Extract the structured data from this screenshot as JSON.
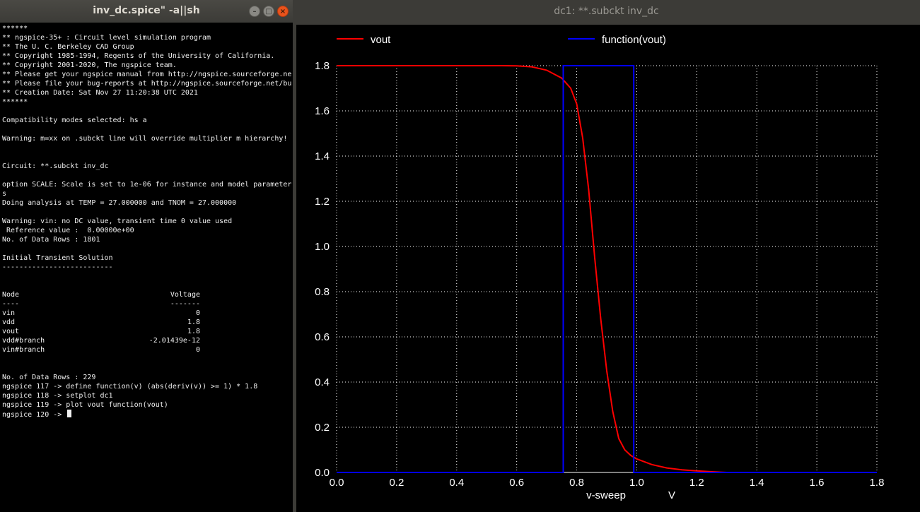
{
  "terminal": {
    "title": "inv_dc.spice\" -a||sh",
    "buttons": {
      "minimize": "–",
      "maximize": "□",
      "close": "×"
    },
    "lines": [
      "******",
      "** ngspice-35+ : Circuit level simulation program",
      "** The U. C. Berkeley CAD Group",
      "** Copyright 1985-1994, Regents of the University of California.",
      "** Copyright 2001-2020, The ngspice team.",
      "** Please get your ngspice manual from http://ngspice.sourceforge.ne",
      "** Please file your bug-reports at http://ngspice.sourceforge.net/bu",
      "** Creation Date: Sat Nov 27 11:20:38 UTC 2021",
      "******",
      "",
      "Compatibility modes selected: hs a",
      "",
      "Warning: m=xx on .subckt line will override multiplier m hierarchy!",
      "",
      "",
      "Circuit: **.subckt inv_dc",
      "",
      "option SCALE: Scale is set to 1e-06 for instance and model parameter",
      "s",
      "Doing analysis at TEMP = 27.000000 and TNOM = 27.000000",
      "",
      "Warning: vin: no DC value, transient time 0 value used",
      " Reference value :  0.00000e+00",
      "No. of Data Rows : 1801",
      "",
      "Initial Transient Solution",
      "--------------------------",
      "",
      "",
      "Node",
      "----",
      "vin",
      "vdd",
      "vout",
      "vdd#branch",
      "vin#branch",
      "",
      "",
      "No. of Data Rows : 229",
      "ngspice 117 -> define function(v) (abs(deriv(v)) >= 1) * 1.8",
      "ngspice 118 -> setplot dc1",
      "ngspice 119 -> plot vout function(vout)",
      "ngspice 120 -> "
    ],
    "right_column": [
      "",
      "",
      "",
      "",
      "",
      "",
      "",
      "",
      "",
      "",
      "",
      "",
      "",
      "",
      "",
      "",
      "",
      "",
      "",
      "",
      "",
      "",
      "",
      "",
      "",
      "",
      "",
      "",
      "",
      "Voltage",
      "-------",
      "0",
      "1.8",
      "1.8",
      "-2.01439e-12",
      "0",
      "",
      "",
      "",
      "",
      "",
      "",
      ""
    ]
  },
  "plot": {
    "window_title": "dc1: **.subckt inv_dc",
    "colors": {
      "background": "#000000",
      "grid": "#ffffff",
      "vout": "#ff0000",
      "function": "#0000ff"
    },
    "chart_data": {
      "type": "line",
      "xlabel": "v-sweep",
      "xunit": "V",
      "xlim": [
        0.0,
        1.8
      ],
      "ylim": [
        0.0,
        1.8
      ],
      "xticks": [
        "0.0",
        "0.2",
        "0.4",
        "0.6",
        "0.8",
        "1.0",
        "1.2",
        "1.4",
        "1.6",
        "1.8"
      ],
      "yticks": [
        "0.0",
        "0.2",
        "0.4",
        "0.6",
        "0.8",
        "1.0",
        "1.2",
        "1.4",
        "1.6",
        "1.8"
      ],
      "grid": true,
      "legend_position": "top",
      "series": [
        {
          "name": "vout",
          "color": "#ff0000",
          "x": [
            0.0,
            0.55,
            0.6,
            0.65,
            0.7,
            0.75,
            0.78,
            0.8,
            0.82,
            0.84,
            0.86,
            0.88,
            0.9,
            0.92,
            0.94,
            0.96,
            0.98,
            1.0,
            1.05,
            1.1,
            1.15,
            1.2,
            1.25,
            1.3,
            1.8
          ],
          "y": [
            1.8,
            1.8,
            1.799,
            1.795,
            1.78,
            1.745,
            1.7,
            1.63,
            1.48,
            1.25,
            0.95,
            0.68,
            0.45,
            0.27,
            0.15,
            0.1,
            0.075,
            0.06,
            0.035,
            0.02,
            0.012,
            0.007,
            0.003,
            0.0,
            0.0
          ]
        },
        {
          "name": "function(vout)",
          "color": "#0000ff",
          "x": [
            0.0,
            0.755,
            0.755,
            0.99,
            0.99,
            1.8
          ],
          "y": [
            0.0,
            0.0,
            1.8,
            1.8,
            0.0,
            0.0
          ]
        }
      ]
    }
  }
}
